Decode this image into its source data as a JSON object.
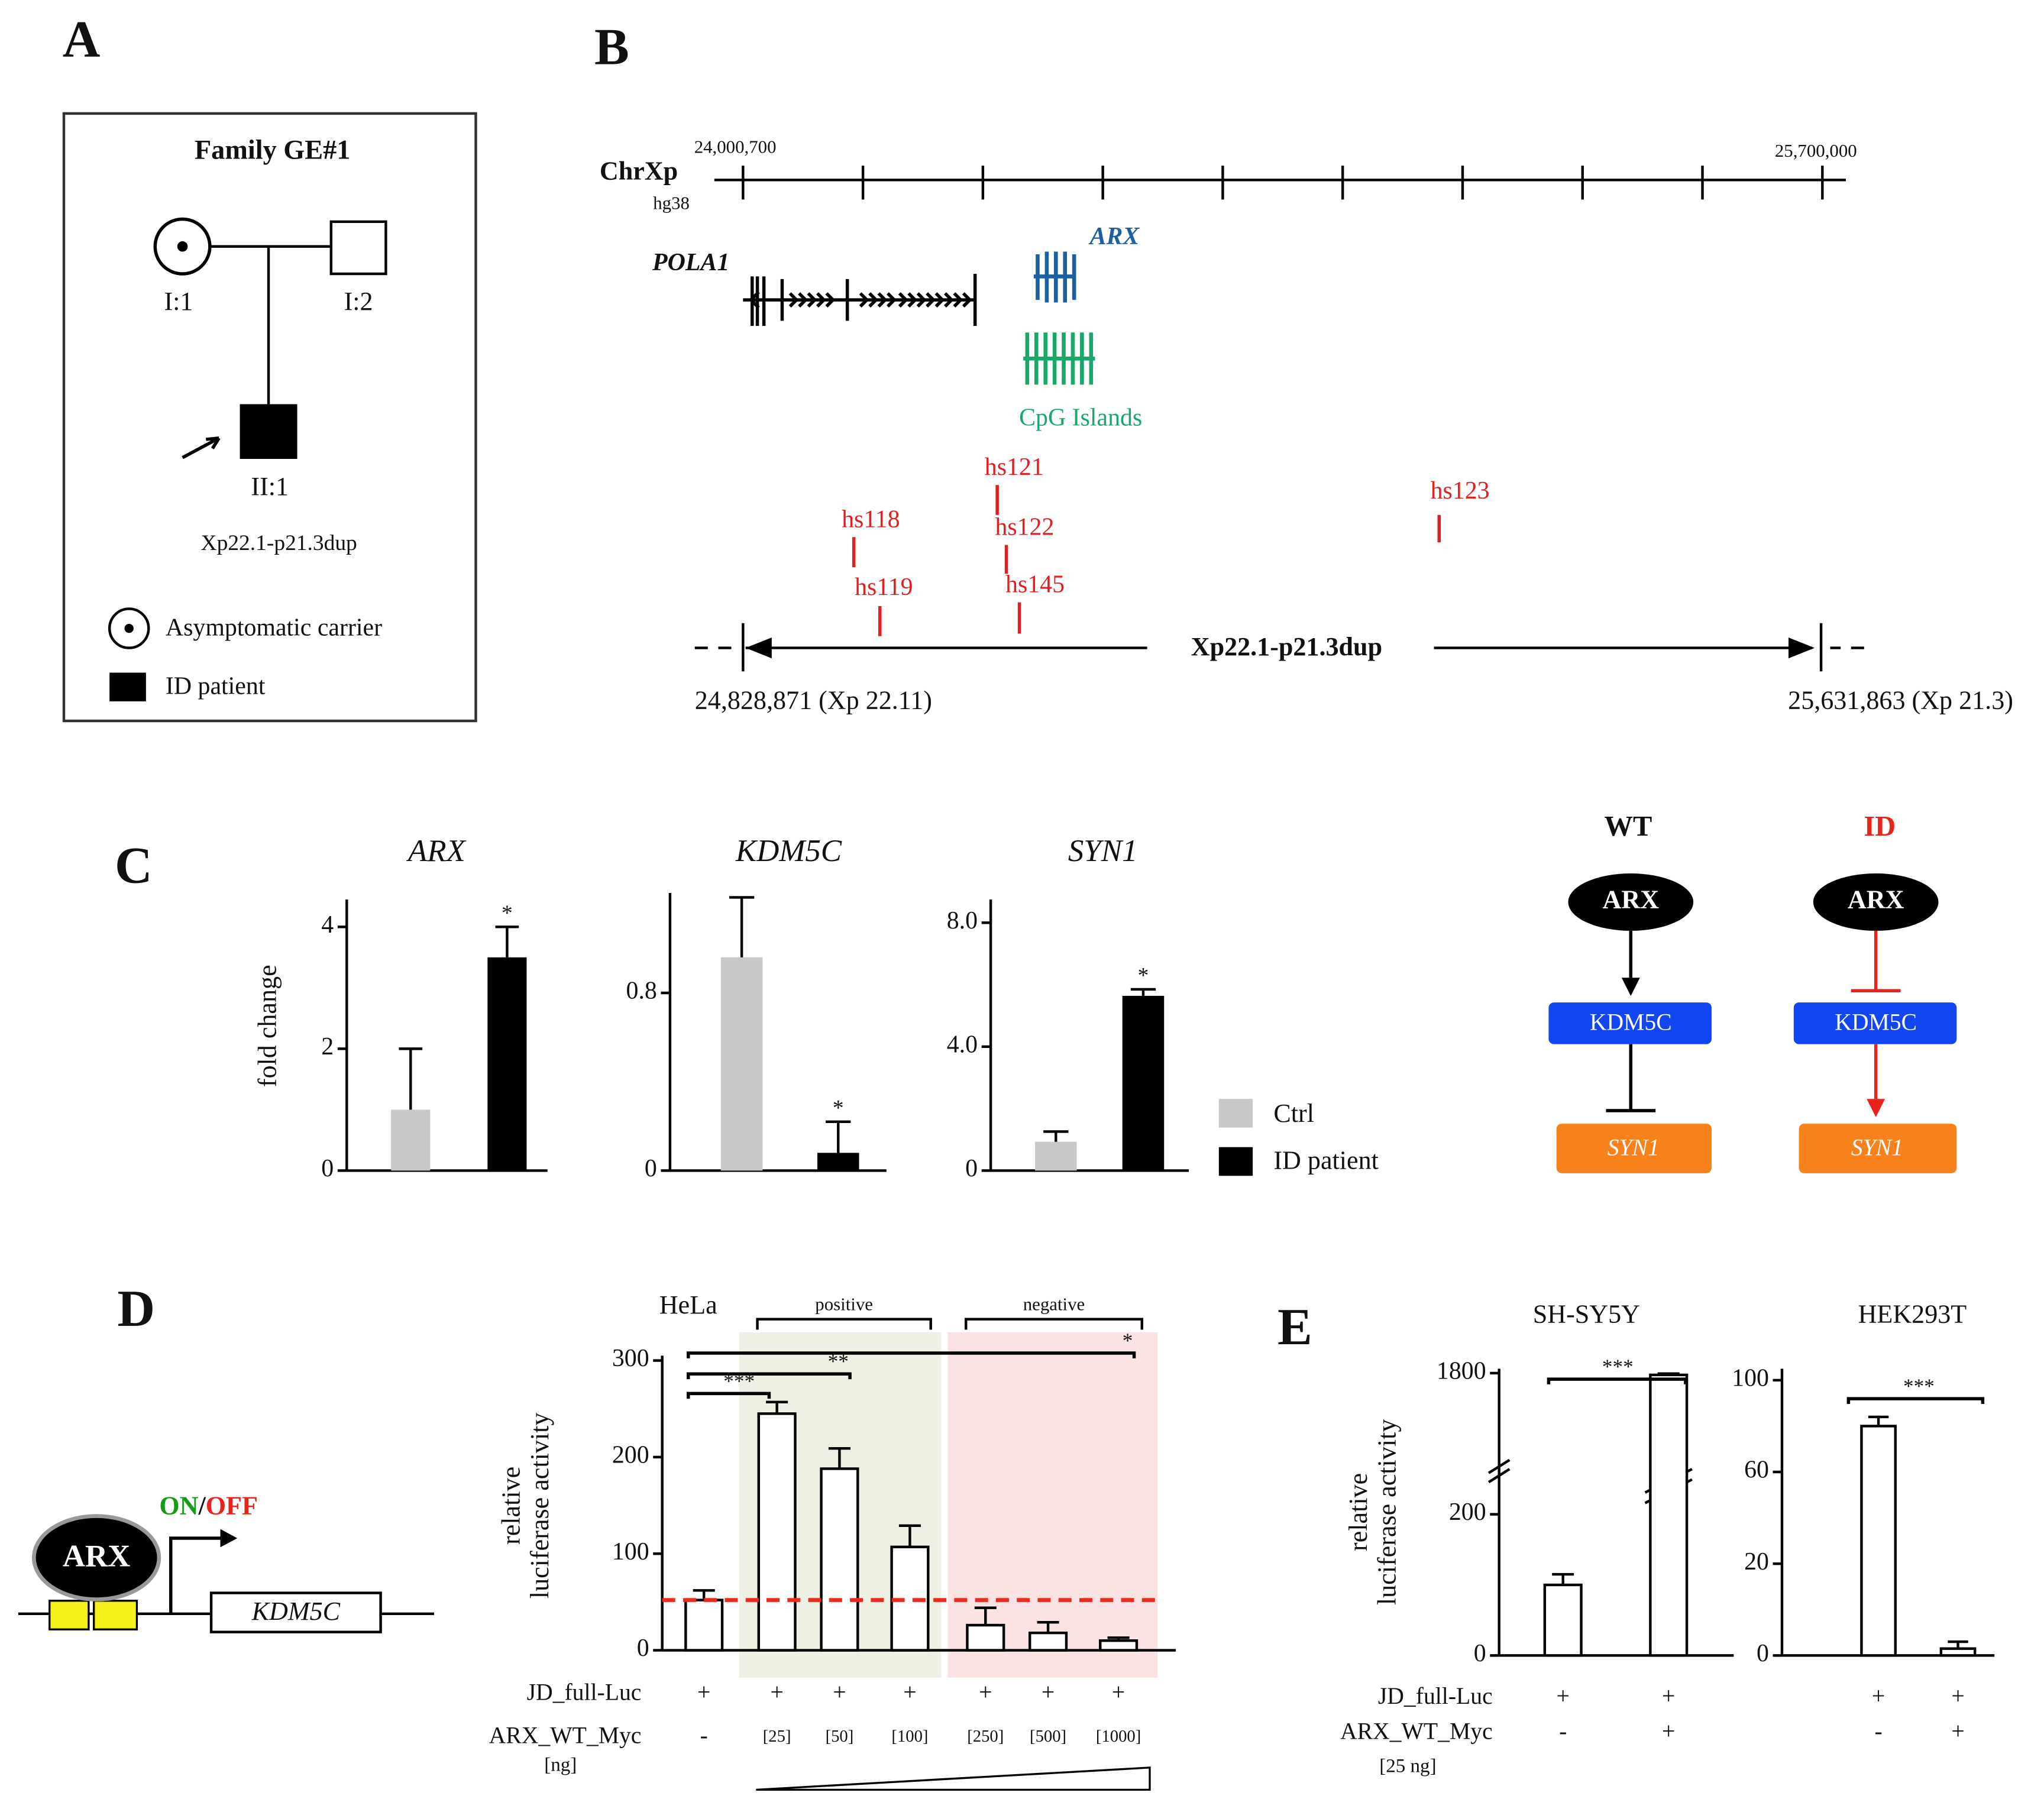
{
  "panel_labels": [
    "A",
    "B",
    "C",
    "D",
    "E"
  ],
  "pedigree": {
    "title": "Family GE#1",
    "individuals": [
      "I:1",
      "I:2",
      "II:1"
    ],
    "variant": "Xp22.1-p21.3dup",
    "legend": [
      "Asymptomatic carrier",
      "ID patient"
    ]
  },
  "genome": {
    "chrom": "ChrXp",
    "build": "hg38",
    "start_label": "24,000,700",
    "end_label": "25,700,000",
    "genes": [
      "POLA1",
      "ARX"
    ],
    "cpg": "CpG Islands",
    "enhancers": [
      "hs121",
      "hs118",
      "hs122",
      "hs119",
      "hs145",
      "hs123"
    ],
    "dup_label": "Xp22.1-p21.3dup",
    "dup_start": "24,828,871 (Xp 22.11)",
    "dup_end": "25,631,863 (Xp 21.3)"
  },
  "c_legend": [
    {
      "name": "Ctrl",
      "color": "#c8c8c8"
    },
    {
      "name": "ID patient",
      "color": "#000000"
    }
  ],
  "pathway": [
    {
      "label": "WT",
      "nodes": [
        "ARX",
        "KDM5C",
        "SYN1"
      ]
    },
    {
      "label": "ID",
      "nodes": [
        "ARX",
        "KDM5C",
        "SYN1"
      ]
    }
  ],
  "promoter": {
    "factor": "ARX",
    "state": [
      "ON",
      "/",
      "OFF"
    ],
    "gene": "KDM5C"
  },
  "chart_data": [
    {
      "type": "bar",
      "title": "ARX",
      "ylabel": "fold change",
      "values": [
        1,
        3.5
      ],
      "errors": [
        1,
        0.5
      ],
      "significance": [
        null,
        "*"
      ],
      "ylim": [
        0,
        4.45
      ],
      "yticks": [
        0,
        2,
        4
      ]
    },
    {
      "type": "bar",
      "title": "KDM5C",
      "values": [
        0.96,
        0.08
      ],
      "errors": [
        0.27,
        0.14
      ],
      "significance": [
        null,
        "*"
      ],
      "ylim": [
        0,
        1.25
      ],
      "yticks": [
        0,
        0.8
      ]
    },
    {
      "type": "bar",
      "title": "SYN1",
      "values": [
        0.93,
        5.64
      ],
      "errors": [
        0.33,
        0.21
      ],
      "significance": [
        null,
        "*"
      ],
      "ylim": [
        0,
        8.75
      ],
      "yticks": [
        0,
        {
          "value": 4,
          "label": "4.0"
        },
        {
          "value": 8,
          "label": "8.0"
        }
      ]
    },
    {
      "type": "bar",
      "title": "HeLa",
      "ylabel": [
        "relative",
        "luciferase activity"
      ],
      "color": "#ffffff",
      "values": [
        52,
        245,
        188,
        107,
        26,
        18,
        10
      ],
      "errors": [
        10,
        12,
        21,
        22,
        18,
        11,
        3
      ],
      "ylim": [
        0,
        305
      ],
      "yticks": [
        0,
        100,
        200,
        300
      ],
      "reference_color": "#ee2a1c",
      "groups": [
        {
          "label": "positive",
          "color": "#eef0e3"
        },
        {
          "label": "negative",
          "color": "#fbe3e3"
        }
      ],
      "comparisons": [
        "***",
        "**",
        "*"
      ],
      "rows": [
        {
          "label": "JD_full-Luc",
          "values": [
            "+",
            "+",
            "+",
            "+",
            "+",
            "+",
            "+"
          ]
        },
        {
          "label": "ARX_WT_Myc",
          "unit": "[ng]",
          "values": [
            "-",
            "[25]",
            "[50]",
            "[100]",
            "[250]",
            "[500]",
            "[1000]"
          ]
        }
      ]
    },
    {
      "type": "bar",
      "title": "SH-SY5Y",
      "ylabel": [
        "relative",
        "luciferase activity"
      ],
      "color": "#ffffff",
      "values": [
        100,
        1780
      ],
      "errors": [
        15,
        15
      ],
      "ylim": [
        0,
        1850
      ],
      "yticks": [
        0,
        200,
        1800
      ],
      "axis_break": true,
      "comparisons": [
        "***"
      ],
      "rows": [
        {
          "label": "JD_full-Luc",
          "values": [
            "+",
            "+"
          ]
        },
        {
          "label": "ARX_WT_Myc",
          "unit": "[25 ng]",
          "values": [
            "-",
            "+"
          ]
        }
      ]
    },
    {
      "type": "bar",
      "title": "HEK293T",
      "color": "#ffffff",
      "values": [
        80,
        1.5
      ],
      "errors": [
        4,
        1.5
      ],
      "ylim": [
        0,
        105
      ],
      "yticks": [
        0,
        20,
        60,
        100
      ],
      "comparisons": [
        "***"
      ],
      "rows": [
        {
          "values": [
            "+",
            "+"
          ]
        },
        {
          "values": [
            "-",
            "+"
          ]
        }
      ]
    }
  ]
}
